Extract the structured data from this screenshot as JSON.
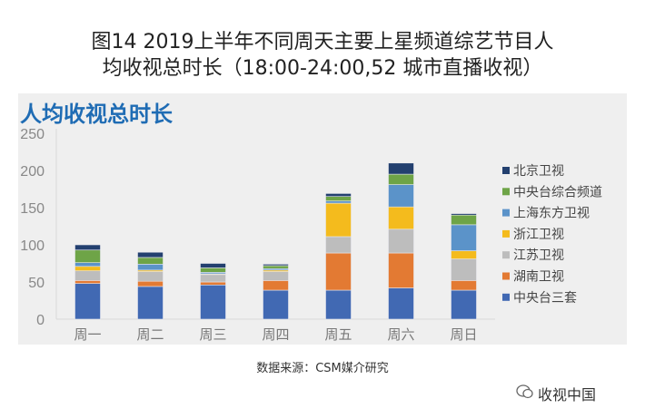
{
  "title_line1": "图14  2019上半年不同周天主要上星频道综艺节目人",
  "title_line2": "均收视总时长（18:00-24:00,52 城市直播收视）",
  "source": "数据来源：CSM媒介研究",
  "watermark": "收视中国",
  "chart_data": {
    "type": "bar",
    "stacked": true,
    "title": "人均收视总时长",
    "categories": [
      "周一",
      "周二",
      "周三",
      "周四",
      "周五",
      "周六",
      "周日"
    ],
    "ylim": [
      0,
      250
    ],
    "yticks": [
      0,
      50,
      100,
      150,
      200,
      250
    ],
    "legend_position": "right",
    "series": [
      {
        "name": "中央台三套",
        "color": "#4169b3",
        "values": [
          48,
          44,
          46,
          39,
          39,
          42,
          39
        ]
      },
      {
        "name": "湖南卫视",
        "color": "#e37a33",
        "values": [
          4,
          7,
          4,
          13,
          50,
          47,
          13
        ]
      },
      {
        "name": "江苏卫视",
        "color": "#bdbdbd",
        "values": [
          13,
          13,
          10,
          12,
          22,
          32,
          29
        ]
      },
      {
        "name": "浙江卫视",
        "color": "#f4bb1d",
        "values": [
          6,
          2,
          1,
          2,
          45,
          30,
          11
        ]
      },
      {
        "name": "上海东方卫视",
        "color": "#5b93c9",
        "values": [
          5,
          8,
          2,
          2,
          3,
          30,
          35
        ]
      },
      {
        "name": "中央台综合频道",
        "color": "#6ea447",
        "values": [
          17,
          9,
          6,
          4,
          6,
          14,
          13
        ]
      },
      {
        "name": "北京卫视",
        "color": "#23406f",
        "values": [
          7,
          7,
          6,
          2,
          4,
          15,
          2
        ]
      }
    ]
  }
}
